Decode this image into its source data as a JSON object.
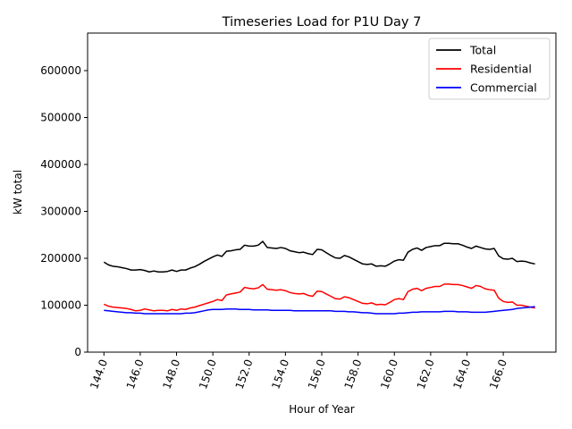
{
  "chart_data": {
    "type": "line",
    "title": "Timeseries Load for P1U   Day 7",
    "xlabel": "Hour of Year",
    "ylabel": "kW total",
    "xlim": [
      143.1,
      168.9
    ],
    "ylim": [
      0,
      680000
    ],
    "xticks": [
      144,
      146,
      148,
      150,
      152,
      154,
      156,
      158,
      160,
      162,
      164,
      166
    ],
    "xtick_labels": [
      "144.0",
      "146.0",
      "148.0",
      "150.0",
      "152.0",
      "154.0",
      "156.0",
      "158.0",
      "160.0",
      "162.0",
      "164.0",
      "166.0"
    ],
    "yticks": [
      0,
      100000,
      200000,
      300000,
      400000,
      500000,
      600000
    ],
    "ytick_labels": [
      "0",
      "100000",
      "200000",
      "300000",
      "400000",
      "500000",
      "600000"
    ],
    "grid": false,
    "legend_position": "top-right",
    "x": [
      144.0,
      144.25,
      144.5,
      144.75,
      145.0,
      145.25,
      145.5,
      145.75,
      146.0,
      146.25,
      146.5,
      146.75,
      147.0,
      147.25,
      147.5,
      147.75,
      148.0,
      148.25,
      148.5,
      148.75,
      149.0,
      149.25,
      149.5,
      149.75,
      150.0,
      150.25,
      150.5,
      150.75,
      151.0,
      151.25,
      151.5,
      151.75,
      152.0,
      152.25,
      152.5,
      152.75,
      153.0,
      153.25,
      153.5,
      153.75,
      154.0,
      154.25,
      154.5,
      154.75,
      155.0,
      155.25,
      155.5,
      155.75,
      156.0,
      156.25,
      156.5,
      156.75,
      157.0,
      157.25,
      157.5,
      157.75,
      158.0,
      158.25,
      158.5,
      158.75,
      159.0,
      159.25,
      159.5,
      159.75,
      160.0,
      160.25,
      160.5,
      160.75,
      161.0,
      161.25,
      161.5,
      161.75,
      162.0,
      162.25,
      162.5,
      162.75,
      163.0,
      163.25,
      163.5,
      163.75,
      164.0,
      164.25,
      164.5,
      164.75,
      165.0,
      165.25,
      165.5,
      165.75,
      166.0,
      166.25,
      166.5,
      166.75,
      167.0,
      167.25,
      167.5,
      167.75
    ],
    "series": [
      {
        "name": "Total",
        "color": "#000000",
        "values": [
          192000,
          186000,
          183000,
          182000,
          180000,
          178000,
          175000,
          175000,
          176000,
          174000,
          171000,
          173000,
          171000,
          171000,
          172000,
          175000,
          172000,
          175000,
          175000,
          179000,
          182000,
          187000,
          193000,
          198000,
          203000,
          207000,
          204000,
          215000,
          216000,
          218000,
          219000,
          228000,
          226000,
          226000,
          228000,
          236000,
          223000,
          222000,
          221000,
          223000,
          221000,
          216000,
          214000,
          212000,
          213000,
          210000,
          208000,
          219000,
          218000,
          212000,
          206000,
          201000,
          200000,
          206000,
          203000,
          198000,
          193000,
          188000,
          187000,
          188000,
          183000,
          184000,
          183000,
          188000,
          194000,
          197000,
          196000,
          213000,
          219000,
          222000,
          217000,
          223000,
          225000,
          227000,
          227000,
          232000,
          232000,
          231000,
          231000,
          228000,
          224000,
          221000,
          226000,
          223000,
          220000,
          219000,
          221000,
          205000,
          199000,
          198000,
          200000,
          193000,
          194000,
          193000,
          190000,
          188000
        ]
      },
      {
        "name": "Residential",
        "color": "#ff0000",
        "values": [
          102000,
          98000,
          96000,
          95000,
          94000,
          93000,
          91000,
          88000,
          89000,
          92000,
          90000,
          88000,
          89000,
          89000,
          88000,
          91000,
          89000,
          92000,
          91000,
          94000,
          96000,
          99000,
          102000,
          105000,
          108000,
          112000,
          110000,
          122000,
          124000,
          126000,
          128000,
          138000,
          136000,
          135000,
          137000,
          144000,
          134000,
          133000,
          132000,
          133000,
          131000,
          127000,
          125000,
          124000,
          125000,
          121000,
          119000,
          130000,
          129000,
          124000,
          119000,
          114000,
          113000,
          118000,
          116000,
          112000,
          108000,
          104000,
          103000,
          105000,
          101000,
          102000,
          101000,
          106000,
          112000,
          114000,
          112000,
          129000,
          134000,
          136000,
          131000,
          136000,
          138000,
          140000,
          140000,
          145000,
          145000,
          144000,
          144000,
          142000,
          139000,
          136000,
          142000,
          140000,
          135000,
          133000,
          132000,
          115000,
          108000,
          106000,
          107000,
          100000,
          100000,
          98000,
          96000,
          94000
        ]
      },
      {
        "name": "Commercial",
        "color": "#0000ff",
        "values": [
          89000,
          88000,
          87000,
          86000,
          85000,
          84000,
          84000,
          83000,
          83000,
          82000,
          82000,
          82000,
          82000,
          82000,
          82000,
          82000,
          82000,
          82000,
          83000,
          83000,
          84000,
          86000,
          88000,
          90000,
          91000,
          91000,
          91000,
          92000,
          92000,
          92000,
          91000,
          91000,
          91000,
          90000,
          90000,
          90000,
          90000,
          89000,
          89000,
          89000,
          89000,
          89000,
          88000,
          88000,
          88000,
          88000,
          88000,
          88000,
          88000,
          88000,
          88000,
          87000,
          87000,
          87000,
          86000,
          86000,
          85000,
          84000,
          84000,
          83000,
          82000,
          82000,
          82000,
          82000,
          82000,
          83000,
          83000,
          84000,
          85000,
          85000,
          86000,
          86000,
          86000,
          86000,
          86000,
          87000,
          87000,
          87000,
          86000,
          86000,
          86000,
          85000,
          85000,
          85000,
          85000,
          86000,
          87000,
          88000,
          89000,
          90000,
          91000,
          93000,
          94000,
          95000,
          96000,
          97000
        ]
      }
    ]
  }
}
